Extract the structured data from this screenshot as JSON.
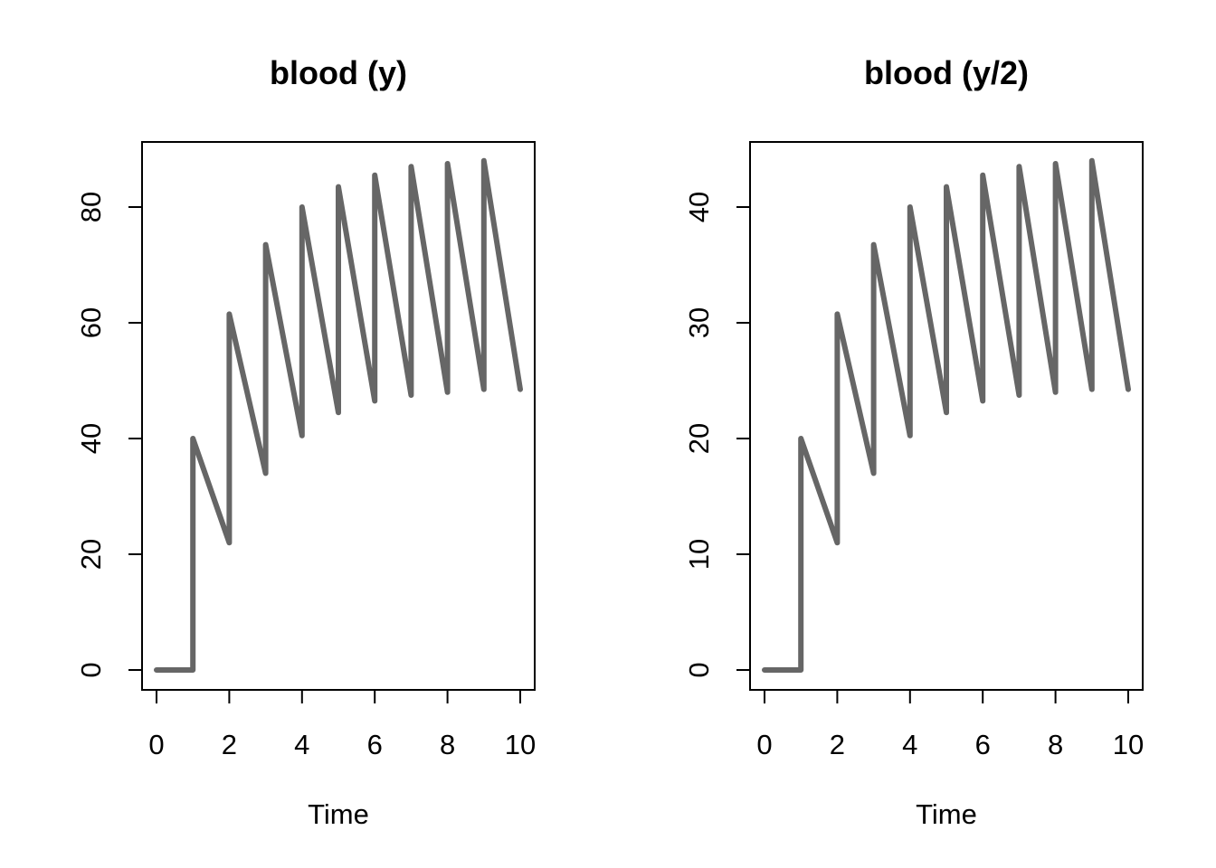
{
  "colors": {
    "line": "#666666",
    "axis": "#000000",
    "background": "#ffffff"
  },
  "chart_data": [
    {
      "type": "line",
      "title": "blood (y)",
      "xlabel": "Time",
      "ylabel": "",
      "xlim": [
        0,
        10
      ],
      "ylim": [
        0,
        88
      ],
      "xticks": [
        0,
        2,
        4,
        6,
        8,
        10
      ],
      "yticks": [
        0,
        20,
        40,
        60,
        80
      ],
      "grid": false,
      "series": [
        {
          "x": [
            0,
            1,
            1,
            2,
            2,
            3,
            3,
            4,
            4,
            5,
            5,
            6,
            6,
            7,
            7,
            8,
            8,
            9,
            9,
            10
          ],
          "y": [
            0,
            0,
            40,
            22,
            61.5,
            34,
            73.5,
            40.5,
            80,
            44.5,
            83.5,
            46.5,
            85.5,
            47.5,
            87,
            48,
            87.5,
            48.5,
            88,
            48.5
          ]
        }
      ]
    },
    {
      "type": "line",
      "title": "blood (y/2)",
      "xlabel": "Time",
      "ylabel": "",
      "xlim": [
        0,
        10
      ],
      "ylim": [
        0,
        44
      ],
      "xticks": [
        0,
        2,
        4,
        6,
        8,
        10
      ],
      "yticks": [
        0,
        10,
        20,
        30,
        40
      ],
      "grid": false,
      "series": [
        {
          "x": [
            0,
            1,
            1,
            2,
            2,
            3,
            3,
            4,
            4,
            5,
            5,
            6,
            6,
            7,
            7,
            8,
            8,
            9,
            9,
            10
          ],
          "y": [
            0,
            0,
            20,
            11,
            30.75,
            17,
            36.75,
            20.25,
            40,
            22.25,
            41.75,
            23.25,
            42.75,
            23.75,
            43.5,
            24,
            43.75,
            24.25,
            44,
            24.25
          ]
        }
      ]
    }
  ]
}
